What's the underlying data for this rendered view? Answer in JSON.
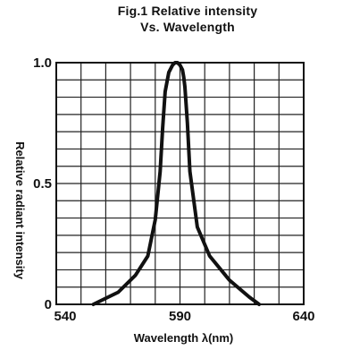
{
  "chart_data": {
    "type": "line",
    "title_line1": "Fig.1 Relative intensity",
    "title_line2": "Vs. Wavelength",
    "xlabel": "Wavelength λ(nm)",
    "ylabel": "Relative radiant intensity",
    "xlim": [
      540,
      640
    ],
    "ylim": [
      0,
      1.0
    ],
    "x_ticks": [
      "540",
      "590",
      "640"
    ],
    "y_ticks": [
      "0",
      "0.5",
      "1.0"
    ],
    "grid": true,
    "line_color": "#111111",
    "series": [
      {
        "x": [
          555,
          565,
          572,
          577,
          580,
          582,
          583,
          584,
          585.5,
          587,
          588,
          589,
          590,
          591,
          591.5,
          592,
          593,
          594,
          597,
          602,
          610,
          618,
          622
        ],
        "y": [
          0.0,
          0.05,
          0.12,
          0.2,
          0.35,
          0.55,
          0.73,
          0.88,
          0.96,
          0.99,
          1.0,
          1.0,
          0.99,
          0.97,
          0.94,
          0.9,
          0.75,
          0.55,
          0.32,
          0.2,
          0.1,
          0.03,
          0.0
        ]
      }
    ]
  }
}
